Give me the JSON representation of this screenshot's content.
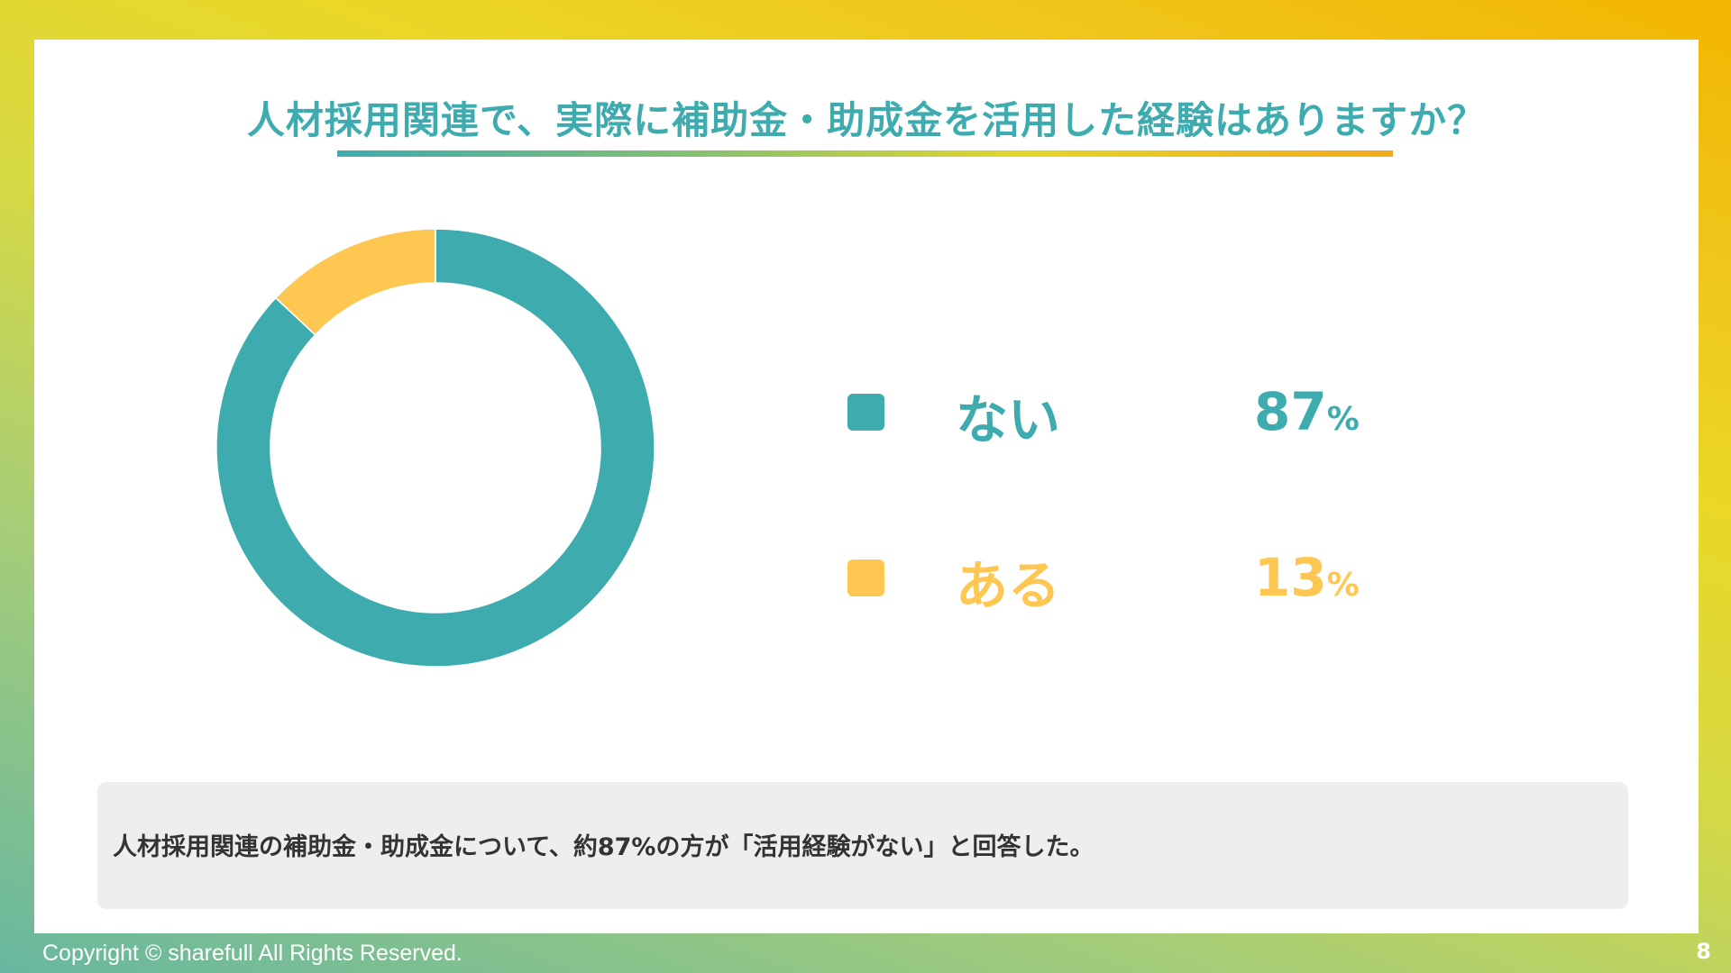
{
  "slide": {
    "title": "人材採用関連で、実際に補助金・助成金を活用した経験はありますか？",
    "summary": "人材採用関連の補助金・助成金について、約87%の方が「活用経験がない」と回答した。",
    "footer": {
      "copyright": "Copyright © sharefull All Rights Reserved.",
      "page_number": "8"
    }
  },
  "legend": [
    {
      "label": "ない",
      "value": "87",
      "unit": "%",
      "color": "#3eabaf",
      "icon": "square-swatch-icon"
    },
    {
      "label": "ある",
      "value": "13",
      "unit": "%",
      "color": "#fec751",
      "icon": "square-swatch-icon"
    }
  ],
  "colors": {
    "accent_teal": "#3eabaf",
    "accent_yellow": "#fec751",
    "summary_bg": "#eeeeee",
    "text_dark": "#333333"
  },
  "chart_data": {
    "type": "pie",
    "variant": "donut",
    "title": "人材採用関連で、実際に補助金・助成金を活用した経験はありますか？",
    "categories": [
      "ない",
      "ある"
    ],
    "values": [
      87,
      13
    ],
    "unit": "%",
    "colors": [
      "#3eabaf",
      "#fec751"
    ],
    "start_angle_deg": 0,
    "direction": "clockwise",
    "legend_position": "right"
  }
}
